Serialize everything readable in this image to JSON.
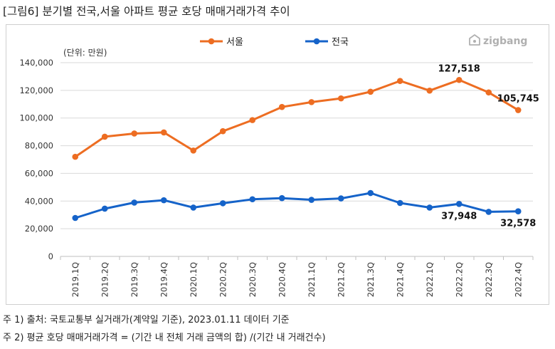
{
  "header": {
    "title": "[그림6] 분기별 전국,서울 아파트 평균 호당 매매거래가격 추이"
  },
  "brand": {
    "name": "zigbang",
    "color": "#b0b0b0"
  },
  "footnotes": [
    "주 1) 출처: 국토교통부 실거래가(계약일 기준), 2023.01.11 데이터 기준",
    "주 2) 평균 호당 매매거래가격 = (기간 내 전체 거래 금액의 합) /(기간 내 거래건수)"
  ],
  "chart_data": {
    "type": "line",
    "title": "",
    "unit_label": "(단위: 만원)",
    "xlabel": "",
    "ylabel": "",
    "ylim": [
      0,
      140000
    ],
    "yticks": [
      0,
      20000,
      40000,
      60000,
      80000,
      100000,
      120000,
      140000
    ],
    "ytick_labels": [
      "0",
      "20,000",
      "40,000",
      "60,000",
      "80,000",
      "100,000",
      "120,000",
      "140,000"
    ],
    "grid": true,
    "legend_position": "top-center",
    "categories": [
      "2019.1Q",
      "2019.2Q",
      "2019.3Q",
      "2019.4Q",
      "2020.1Q",
      "2020.2Q",
      "2020.3Q",
      "2020.4Q",
      "2021.1Q",
      "2021.2Q",
      "2021.3Q",
      "2021.4Q",
      "2022.1Q",
      "2022.2Q",
      "2022.3Q",
      "2022.4Q"
    ],
    "series": [
      {
        "name": "서울",
        "color": "#ed6d22",
        "values": [
          72000,
          86500,
          88800,
          89600,
          76500,
          90500,
          98500,
          108000,
          111500,
          114200,
          119000,
          126800,
          119800,
          127518,
          118500,
          105745
        ]
      },
      {
        "name": "전국",
        "color": "#1563c9",
        "values": [
          27800,
          34500,
          38900,
          40600,
          35300,
          38400,
          41300,
          42100,
          40900,
          41900,
          45800,
          38600,
          35300,
          37948,
          32200,
          32578
        ]
      }
    ],
    "annotations": [
      {
        "series": 0,
        "index": 13,
        "text": "127,518",
        "placement": "above"
      },
      {
        "series": 0,
        "index": 15,
        "text": "105,745",
        "placement": "above"
      },
      {
        "series": 1,
        "index": 13,
        "text": "37,948",
        "placement": "below"
      },
      {
        "series": 1,
        "index": 15,
        "text": "32,578",
        "placement": "below"
      }
    ]
  }
}
